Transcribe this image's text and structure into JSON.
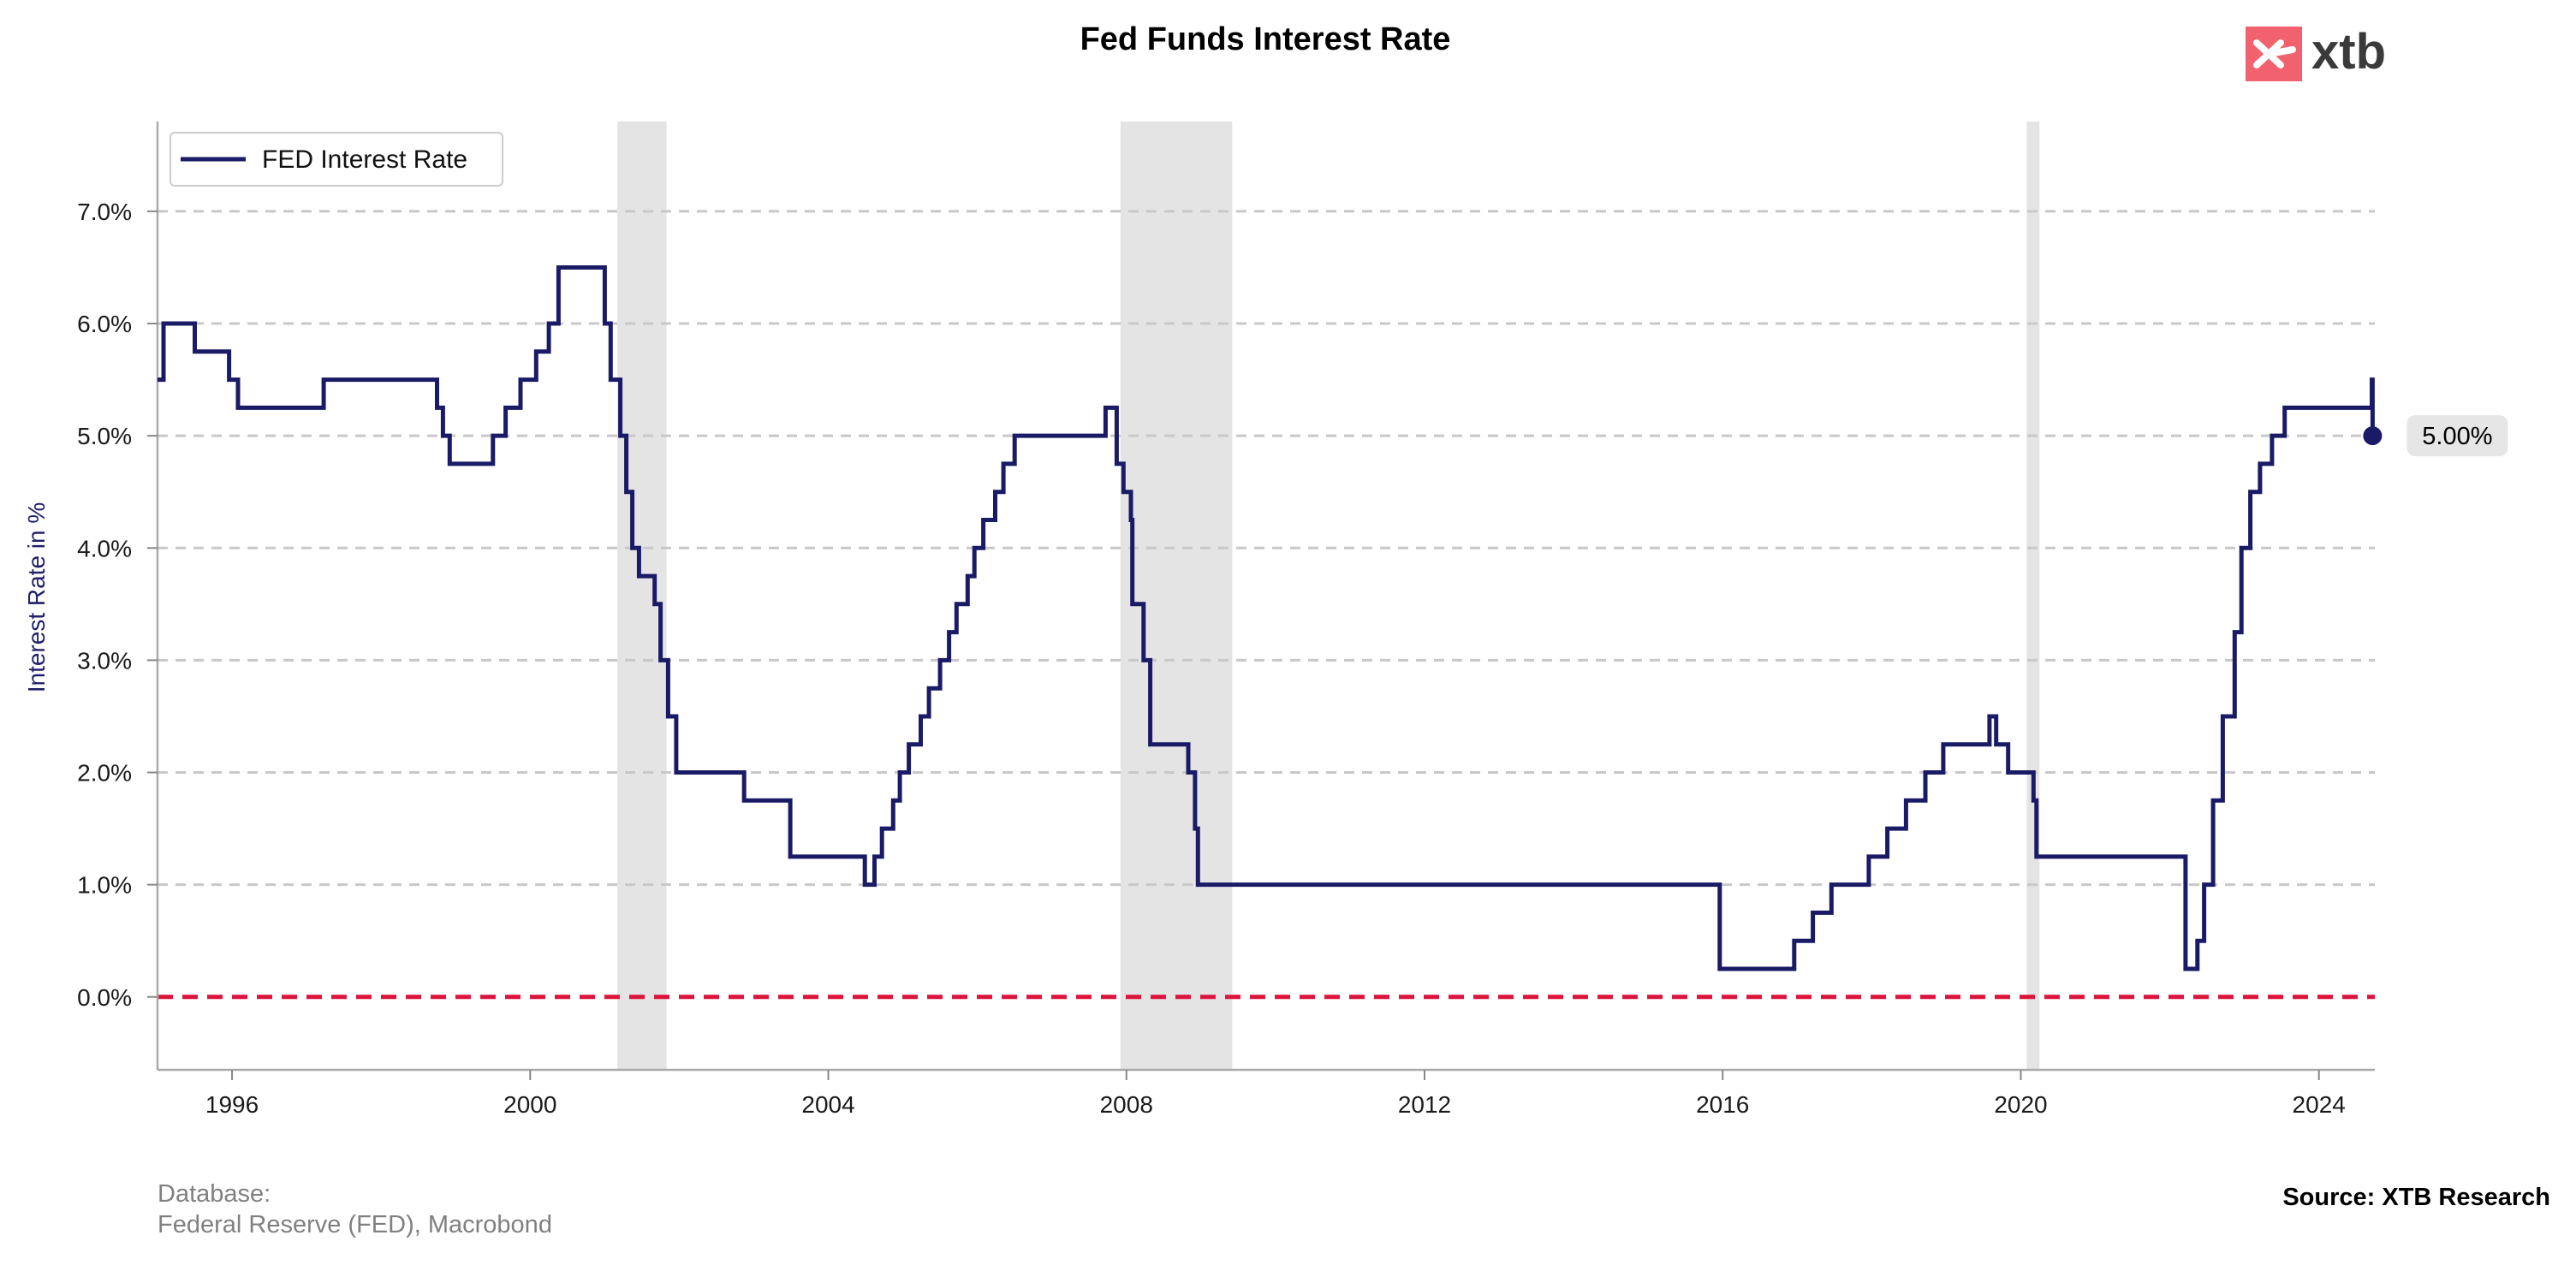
{
  "chart_data": {
    "type": "line",
    "step": true,
    "title": "Fed Funds Interest Rate",
    "xlabel": "",
    "ylabel": "Interest Rate in %",
    "xlim": [
      1995.0,
      2024.75
    ],
    "ylim": [
      -0.65,
      7.8
    ],
    "x_ticks": [
      1996,
      2000,
      2004,
      2008,
      2012,
      2016,
      2020,
      2024
    ],
    "y_ticks": [
      {
        "value": 0,
        "label": "0.0%"
      },
      {
        "value": 1,
        "label": "1.0%"
      },
      {
        "value": 2,
        "label": "2.0%"
      },
      {
        "value": 3,
        "label": "3.0%"
      },
      {
        "value": 4,
        "label": "4.0%"
      },
      {
        "value": 5,
        "label": "5.0%"
      },
      {
        "value": 6,
        "label": "6.0%"
      },
      {
        "value": 7,
        "label": "7.0%"
      }
    ],
    "grid": "horizontal dashed",
    "legend_position": "top-left",
    "series": [
      {
        "name": "FED Interest Rate",
        "color": "#1a1a66",
        "x": [
          1995.0,
          1995.08,
          1995.5,
          1995.96,
          1996.08,
          1997.23,
          1998.75,
          1998.83,
          1998.92,
          1999.5,
          1999.67,
          1999.87,
          2000.08,
          2000.25,
          2000.38,
          2001.0,
          2001.08,
          2001.21,
          2001.29,
          2001.37,
          2001.46,
          2001.67,
          2001.75,
          2001.85,
          2001.96,
          2002.87,
          2003.49,
          2004.49,
          2004.62,
          2004.72,
          2004.87,
          2004.96,
          2005.08,
          2005.24,
          2005.35,
          2005.5,
          2005.62,
          2005.72,
          2005.87,
          2005.96,
          2006.08,
          2006.24,
          2006.35,
          2006.5,
          2007.72,
          2007.87,
          2007.96,
          2008.06,
          2008.08,
          2008.23,
          2008.32,
          2008.83,
          2008.92,
          2008.96,
          2015.96,
          2016.96,
          2017.21,
          2017.46,
          2017.96,
          2018.21,
          2018.46,
          2018.72,
          2018.96,
          2019.58,
          2019.67,
          2019.83,
          2020.17,
          2020.21,
          2022.21,
          2022.37,
          2022.46,
          2022.58,
          2022.71,
          2022.87,
          2022.96,
          2023.08,
          2023.21,
          2023.37,
          2023.54,
          2024.71,
          2024.72
        ],
        "values": [
          5.5,
          6.0,
          5.75,
          5.5,
          5.25,
          5.5,
          5.25,
          5.0,
          4.75,
          5.0,
          5.25,
          5.5,
          5.75,
          6.0,
          6.5,
          6.0,
          5.5,
          5.0,
          4.5,
          4.0,
          3.75,
          3.5,
          3.0,
          2.5,
          2.0,
          1.75,
          1.25,
          1.0,
          1.25,
          1.5,
          1.75,
          2.0,
          2.25,
          2.5,
          2.75,
          3.0,
          3.25,
          3.5,
          3.75,
          4.0,
          4.25,
          4.5,
          4.75,
          5.0,
          5.25,
          4.75,
          4.5,
          4.25,
          3.5,
          3.0,
          2.25,
          2.0,
          1.5,
          1.0,
          0.25,
          0.5,
          0.75,
          1.0,
          1.25,
          1.5,
          1.75,
          2.0,
          2.25,
          2.5,
          2.25,
          2.0,
          1.75,
          1.25,
          0.25,
          0.5,
          1.0,
          1.75,
          2.5,
          3.25,
          4.0,
          4.5,
          4.75,
          5.0,
          5.25,
          5.5,
          5.0
        ]
      }
    ],
    "recession_bands": [
      [
        2001.17,
        2001.83
      ],
      [
        2007.92,
        2009.42
      ],
      [
        2020.08,
        2020.25
      ]
    ],
    "zero_line": {
      "value": 0,
      "color": "#dc143c",
      "style": "dashed"
    },
    "end_marker": {
      "x": 2024.72,
      "value": 5.0,
      "label": "5.00%"
    }
  },
  "logo": {
    "text": "xtb",
    "icon": "x-icon",
    "brand_color": "#f2626e"
  },
  "footer": {
    "database_label": "Database:",
    "database_source": "Federal Reserve (FED), Macrobond",
    "source": "Source: XTB Research"
  }
}
